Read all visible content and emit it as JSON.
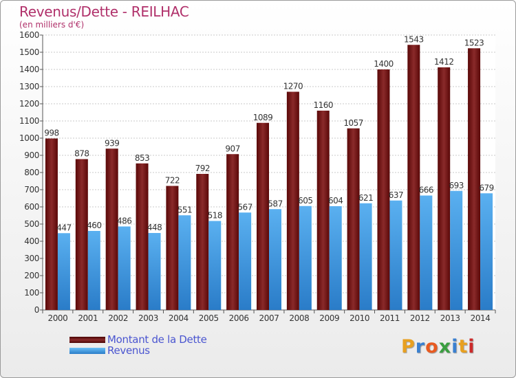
{
  "header": {
    "title": "Revenus/Dette - REILHAC",
    "unit": "(en milliers d'€)"
  },
  "legend": {
    "items": [
      {
        "label": "Montant de la Dette",
        "color": "#6b1010"
      },
      {
        "label": "Revenus",
        "color": "#3a9be0"
      }
    ]
  },
  "logo": {
    "letters": [
      "P",
      "r",
      "o",
      "x",
      "i",
      "t",
      "i"
    ],
    "colors": [
      "#e8a020",
      "#3a80d0",
      "#e85a20",
      "#3a9e40",
      "#3a80d0",
      "#e8a020",
      "#cc2a2a"
    ]
  },
  "chart_data": {
    "type": "bar",
    "categories": [
      "2000",
      "2001",
      "2002",
      "2003",
      "2004",
      "2005",
      "2006",
      "2007",
      "2008",
      "2009",
      "2010",
      "2011",
      "2012",
      "2013",
      "2014"
    ],
    "series": [
      {
        "name": "Montant de la Dette",
        "values": [
          998,
          878,
          939,
          853,
          722,
          792,
          907,
          1089,
          1270,
          1160,
          1057,
          1400,
          1543,
          1412,
          1523
        ],
        "color": "#7a1a1a"
      },
      {
        "name": "Revenus",
        "values": [
          447,
          460,
          486,
          448,
          551,
          518,
          567,
          587,
          605,
          604,
          621,
          637,
          666,
          693,
          679
        ],
        "color": "#3a9be0"
      }
    ],
    "yticks": [
      0,
      100,
      200,
      300,
      400,
      500,
      600,
      700,
      800,
      900,
      1000,
      1100,
      1200,
      1300,
      1400,
      1500,
      1600
    ],
    "ylim": [
      0,
      1600
    ],
    "grid": true
  }
}
